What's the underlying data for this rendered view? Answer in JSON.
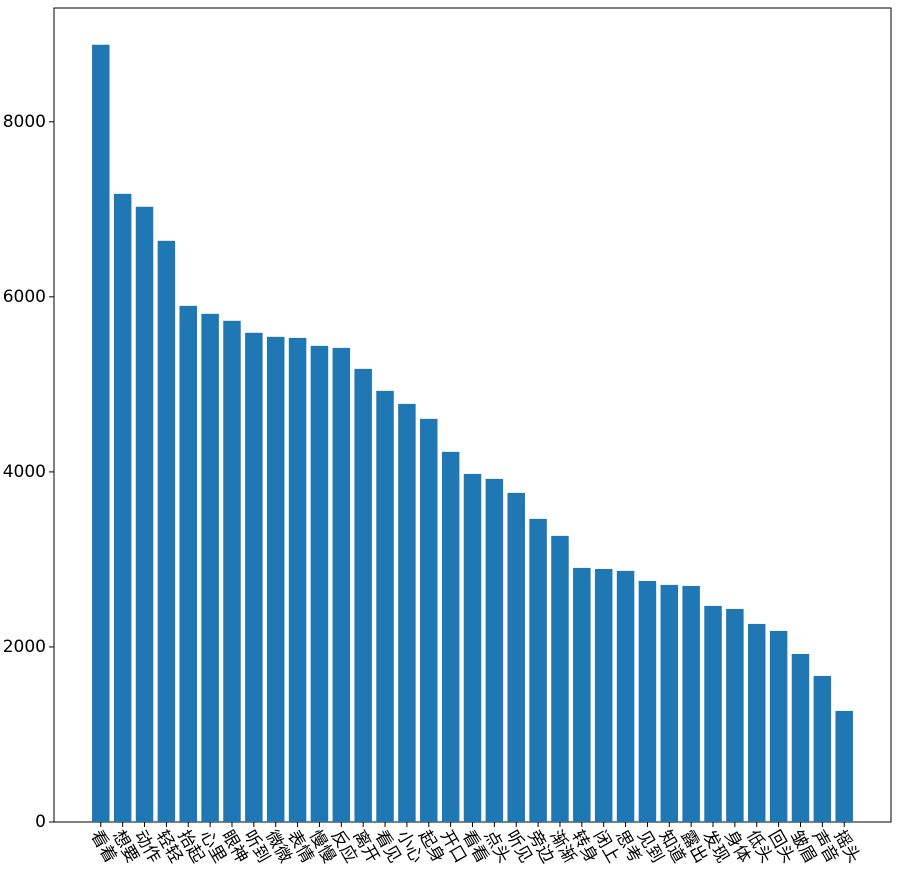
{
  "chart_data": {
    "type": "bar",
    "categories": [
      "看着",
      "想要",
      "动作",
      "轻轻",
      "抬起",
      "心里",
      "眼神",
      "听到",
      "微微",
      "表情",
      "慢慢",
      "反应",
      "离开",
      "看见",
      "小心",
      "起身",
      "开口",
      "看看",
      "点头",
      "听见",
      "旁边",
      "渐渐",
      "转身",
      "闭上",
      "思考",
      "见到",
      "知道",
      "露出",
      "发现",
      "身体",
      "低头",
      "回头",
      "皱眉",
      "声音",
      "摇头"
    ],
    "values": [
      8880,
      7177,
      7029,
      6640,
      5897,
      5806,
      5726,
      5589,
      5543,
      5531,
      5440,
      5417,
      5177,
      4926,
      4777,
      4606,
      4229,
      3977,
      3920,
      3760,
      3463,
      3269,
      2903,
      2891,
      2869,
      2754,
      2709,
      2697,
      2469,
      2434,
      2263,
      2183,
      1920,
      1669,
      1269
    ],
    "color": "#1f77b4",
    "ylim": [
      0,
      9300
    ],
    "yticks": [
      0,
      2000,
      4000,
      6000,
      8000
    ],
    "grid": false
  }
}
